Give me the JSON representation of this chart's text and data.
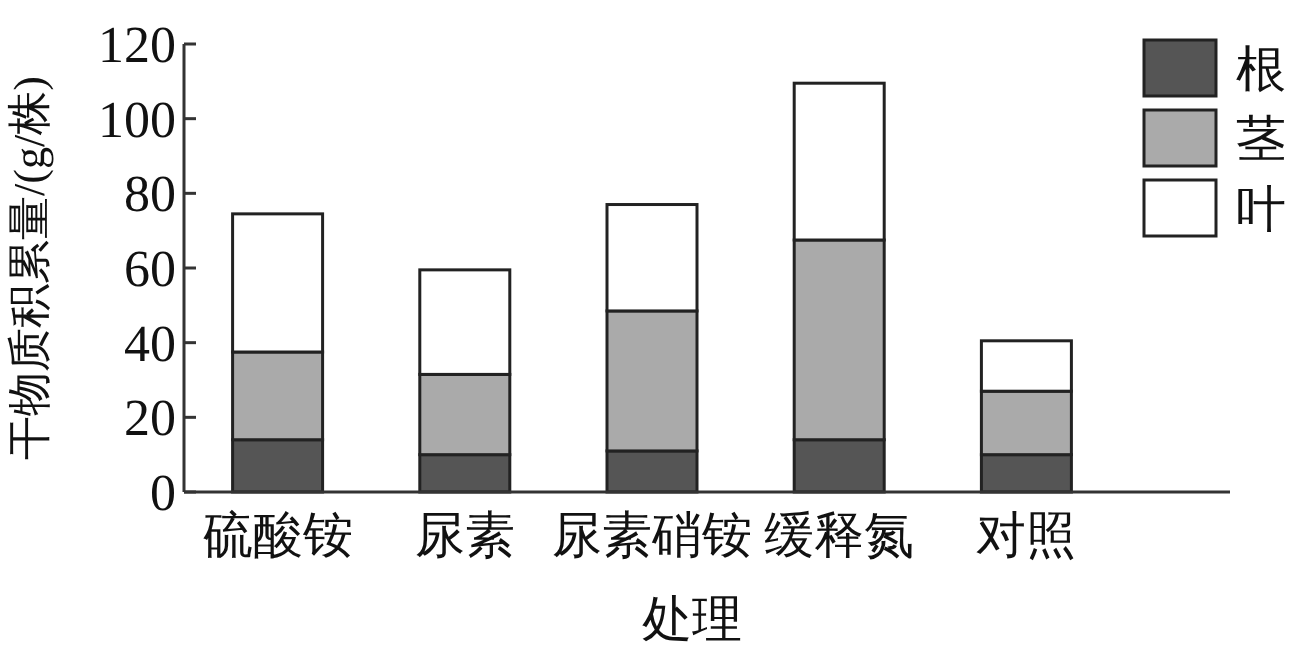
{
  "chart_data": {
    "type": "bar",
    "stacked": true,
    "xlabel": "处理",
    "ylabel": "干物质积累量/(g/株)",
    "categories": [
      "硫酸铵",
      "尿素",
      "尿素硝铵",
      "缓释氮",
      "对照"
    ],
    "ylim": [
      0,
      120
    ],
    "yticks": [
      0,
      20,
      40,
      60,
      80,
      100,
      120
    ],
    "grid": false,
    "legend": "top right",
    "series": [
      {
        "name": "根",
        "color": "#555555",
        "values": [
          14,
          10,
          11,
          14,
          10
        ]
      },
      {
        "name": "茎",
        "color": "#aaaaaa",
        "values": [
          23.5,
          21.5,
          37.5,
          53.5,
          17
        ]
      },
      {
        "name": "叶",
        "color": "#ffffff",
        "values": [
          37,
          28,
          28.5,
          42,
          13.5
        ]
      }
    ]
  }
}
